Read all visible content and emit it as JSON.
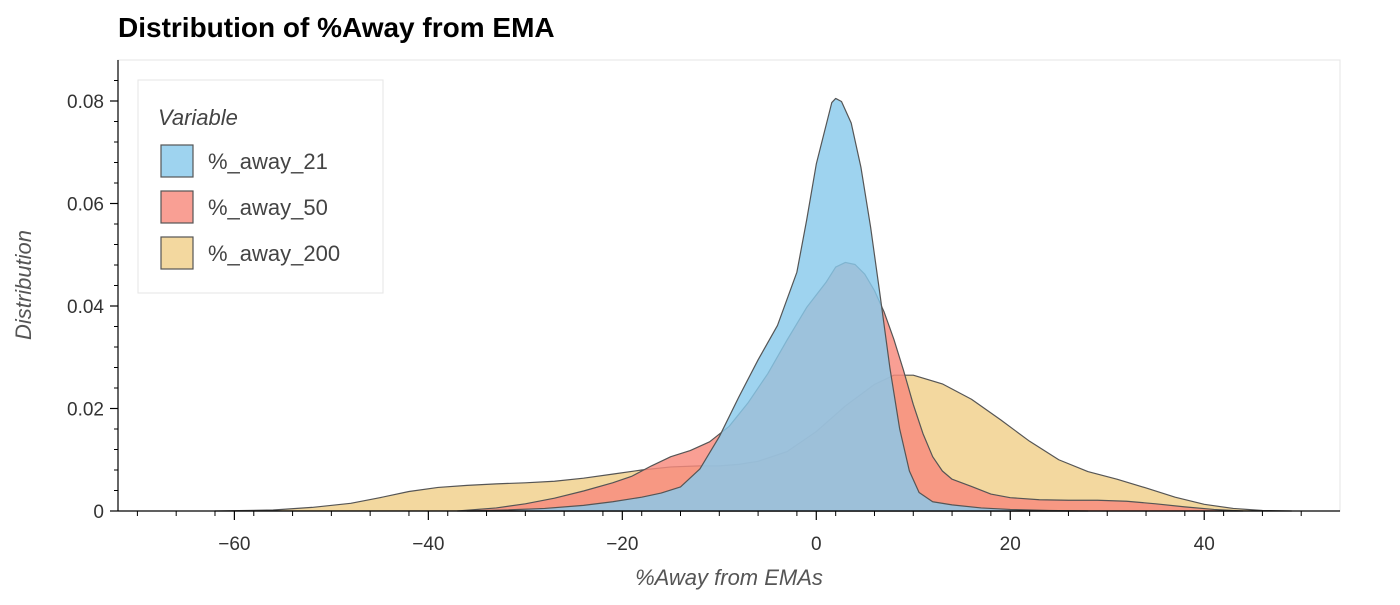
{
  "chart_data": {
    "type": "area",
    "title": "Distribution of %Away from EMA",
    "xlabel": "%Away from EMAs",
    "ylabel": "Distribution",
    "xlim": [
      -72,
      54
    ],
    "ylim": [
      0,
      0.088
    ],
    "x_ticks": [
      -60,
      -40,
      -20,
      0,
      20,
      40
    ],
    "x_tick_labels": [
      "−60",
      "−40",
      "−20",
      "0",
      "20",
      "40"
    ],
    "y_ticks": [
      0,
      0.02,
      0.04,
      0.06,
      0.08
    ],
    "y_tick_labels": [
      "0",
      "0.02",
      "0.04",
      "0.06",
      "0.08"
    ],
    "grid": false,
    "legend": {
      "title": "Variable",
      "placement": "top-left"
    },
    "series": [
      {
        "name": "%_away_200",
        "color": "#f0cf8a",
        "points": [
          [
            -62,
            0
          ],
          [
            -56,
            0.0002
          ],
          [
            -52,
            0.0007
          ],
          [
            -48,
            0.0015
          ],
          [
            -45,
            0.0026
          ],
          [
            -42,
            0.0038
          ],
          [
            -39,
            0.0046
          ],
          [
            -36,
            0.005
          ],
          [
            -33,
            0.0053
          ],
          [
            -30,
            0.0055
          ],
          [
            -27,
            0.0058
          ],
          [
            -24,
            0.0064
          ],
          [
            -21,
            0.0072
          ],
          [
            -18,
            0.008
          ],
          [
            -15,
            0.0086
          ],
          [
            -12,
            0.0088
          ],
          [
            -10,
            0.0088
          ],
          [
            -8,
            0.0091
          ],
          [
            -6,
            0.0097
          ],
          [
            -3,
            0.0116
          ],
          [
            0,
            0.0155
          ],
          [
            3,
            0.0205
          ],
          [
            6,
            0.0247
          ],
          [
            8,
            0.0265
          ],
          [
            10,
            0.0265
          ],
          [
            13,
            0.0248
          ],
          [
            16,
            0.0218
          ],
          [
            19,
            0.0178
          ],
          [
            22,
            0.0136
          ],
          [
            25,
            0.01
          ],
          [
            28,
            0.0077
          ],
          [
            31,
            0.0062
          ],
          [
            34,
            0.0045
          ],
          [
            37,
            0.0027
          ],
          [
            40,
            0.0013
          ],
          [
            43,
            0.0005
          ],
          [
            46,
            0.0001
          ],
          [
            49,
            0
          ]
        ]
      },
      {
        "name": "%_away_50",
        "color": "#f88a7c",
        "points": [
          [
            -37,
            0
          ],
          [
            -33,
            0.0006
          ],
          [
            -30,
            0.0014
          ],
          [
            -27,
            0.0025
          ],
          [
            -24,
            0.0039
          ],
          [
            -21,
            0.0055
          ],
          [
            -19,
            0.0068
          ],
          [
            -17,
            0.0088
          ],
          [
            -15,
            0.0106
          ],
          [
            -13,
            0.0118
          ],
          [
            -11,
            0.0135
          ],
          [
            -9,
            0.0165
          ],
          [
            -7,
            0.0212
          ],
          [
            -5,
            0.0268
          ],
          [
            -3,
            0.0334
          ],
          [
            -1,
            0.0397
          ],
          [
            1,
            0.0446
          ],
          [
            2,
            0.0476
          ],
          [
            3,
            0.0485
          ],
          [
            4,
            0.0481
          ],
          [
            5,
            0.0462
          ],
          [
            6,
            0.043
          ],
          [
            7,
            0.0388
          ],
          [
            8,
            0.0335
          ],
          [
            9,
            0.0274
          ],
          [
            10,
            0.0208
          ],
          [
            11,
            0.0151
          ],
          [
            12,
            0.0106
          ],
          [
            13,
            0.0078
          ],
          [
            14,
            0.0062
          ],
          [
            16,
            0.0048
          ],
          [
            18,
            0.0033
          ],
          [
            20,
            0.0026
          ],
          [
            23,
            0.0022
          ],
          [
            26,
            0.0021
          ],
          [
            29,
            0.0021
          ],
          [
            32,
            0.0019
          ],
          [
            35,
            0.0014
          ],
          [
            38,
            0.0008
          ],
          [
            41,
            0.0003
          ],
          [
            44,
            0
          ]
        ]
      },
      {
        "name": "%_away_21",
        "color": "#89c9ec",
        "points": [
          [
            -36,
            0
          ],
          [
            -32,
            0.0002
          ],
          [
            -28,
            0.0005
          ],
          [
            -24,
            0.0011
          ],
          [
            -21,
            0.0018
          ],
          [
            -18,
            0.0027
          ],
          [
            -16,
            0.0035
          ],
          [
            -14,
            0.0047
          ],
          [
            -12,
            0.0082
          ],
          [
            -10,
            0.0145
          ],
          [
            -8,
            0.0222
          ],
          [
            -6,
            0.0295
          ],
          [
            -4,
            0.0362
          ],
          [
            -2,
            0.0466
          ],
          [
            -1,
            0.0567
          ],
          [
            0,
            0.0677
          ],
          [
            1,
            0.0752
          ],
          [
            1.6,
            0.0797
          ],
          [
            2,
            0.0805
          ],
          [
            2.6,
            0.0799
          ],
          [
            3.6,
            0.0757
          ],
          [
            4.6,
            0.0671
          ],
          [
            5.6,
            0.0554
          ],
          [
            6.6,
            0.0418
          ],
          [
            7.6,
            0.0278
          ],
          [
            8.6,
            0.016
          ],
          [
            9.6,
            0.0078
          ],
          [
            10.6,
            0.0036
          ],
          [
            12,
            0.0018
          ],
          [
            14,
            0.0012
          ],
          [
            17,
            0.0006
          ],
          [
            20,
            0.0003
          ],
          [
            24,
            0.0001
          ],
          [
            28,
            0
          ]
        ]
      }
    ]
  }
}
